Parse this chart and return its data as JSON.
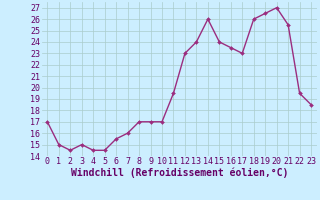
{
  "x": [
    0,
    1,
    2,
    3,
    4,
    5,
    6,
    7,
    8,
    9,
    10,
    11,
    12,
    13,
    14,
    15,
    16,
    17,
    18,
    19,
    20,
    21,
    22,
    23
  ],
  "y": [
    17,
    15,
    14.5,
    15,
    14.5,
    14.5,
    15.5,
    16,
    17,
    17,
    17,
    19.5,
    23,
    24,
    26,
    24,
    23.5,
    23,
    26,
    26.5,
    27,
    25.5,
    19.5,
    18.5
  ],
  "line_color": "#9b2d7f",
  "marker": "D",
  "marker_size": 2,
  "background_color": "#cceeff",
  "grid_color": "#aacccc",
  "xlabel": "Windchill (Refroidissement éolien,°C)",
  "ylim": [
    14,
    27.5
  ],
  "xlim": [
    -0.5,
    23.5
  ],
  "yticks": [
    14,
    15,
    16,
    17,
    18,
    19,
    20,
    21,
    22,
    23,
    24,
    25,
    26,
    27
  ],
  "xticks": [
    0,
    1,
    2,
    3,
    4,
    5,
    6,
    7,
    8,
    9,
    10,
    11,
    12,
    13,
    14,
    15,
    16,
    17,
    18,
    19,
    20,
    21,
    22,
    23
  ],
  "tick_fontsize": 6,
  "xlabel_fontsize": 7,
  "line_width": 1.0
}
